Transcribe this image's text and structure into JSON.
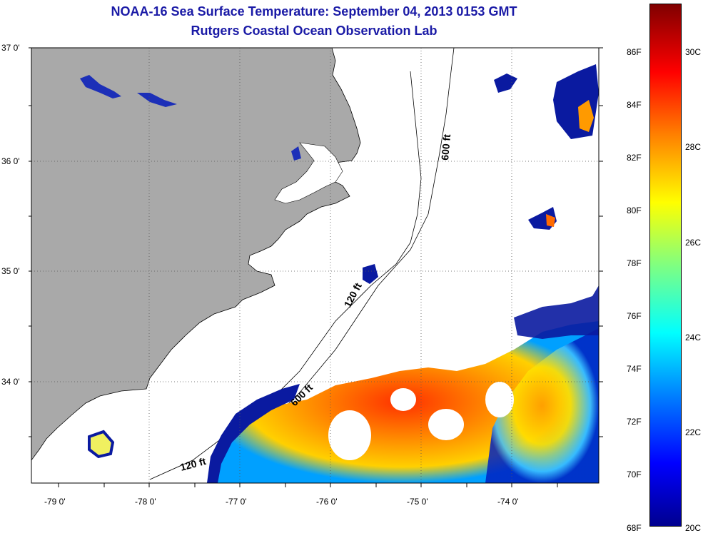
{
  "title_line1": "NOAA-16 Sea Surface Temperature:  September 04, 2013 0153 GMT",
  "title_line2": "Rutgers Coastal Ocean Observation Lab",
  "lat_labels": [
    "37 0'",
    "36 0'",
    "35 0'",
    "34 0'"
  ],
  "lon_labels": [
    "-79 0'",
    "-78 0'",
    "-77 0'",
    "-76 0'",
    "-75 0'",
    "-74 0'"
  ],
  "isobaths": [
    "600 ft",
    "120 ft",
    "600 ft",
    "120 ft"
  ],
  "colorbar": {
    "fahrenheit": [
      "86F",
      "84F",
      "82F",
      "80F",
      "78F",
      "76F",
      "74F",
      "72F",
      "70F",
      "68F"
    ],
    "celsius": [
      "30C",
      "28C",
      "26C",
      "24C",
      "22C",
      "20C"
    ]
  },
  "colors": {
    "title": "#1a1aa6",
    "land": "#a9a9a9",
    "cold": "#00008f",
    "warm": "#ff3000"
  }
}
